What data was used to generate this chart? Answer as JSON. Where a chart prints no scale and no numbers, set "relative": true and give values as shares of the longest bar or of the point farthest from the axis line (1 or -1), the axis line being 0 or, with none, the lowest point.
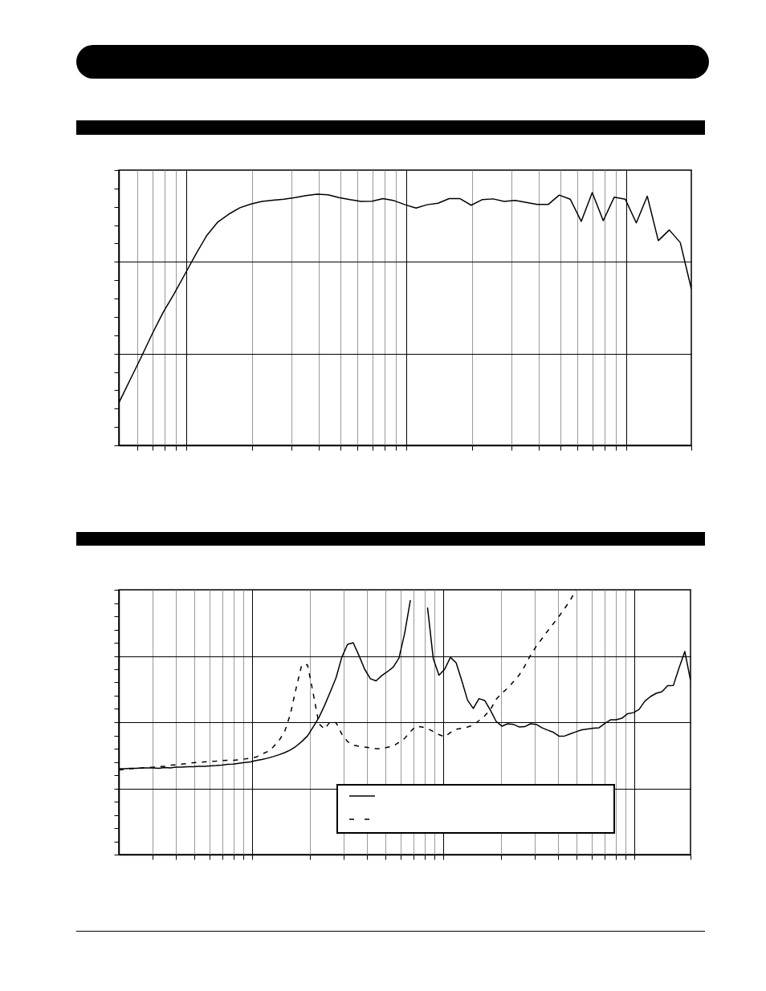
{
  "chart_data": [
    {
      "type": "line",
      "relative": true,
      "grid": true,
      "categories": [
        null,
        null,
        null,
        null,
        null,
        null,
        null,
        null,
        null,
        null,
        null,
        null,
        null,
        null,
        null,
        null,
        null,
        null,
        null,
        null,
        null,
        null,
        null,
        null,
        null,
        null,
        null,
        null,
        null,
        null,
        null,
        null,
        null,
        null,
        null,
        null,
        null,
        null,
        null,
        null,
        null,
        null,
        null,
        null,
        null,
        null,
        null,
        null,
        null,
        null,
        null,
        null,
        null
      ],
      "series": [
        {
          "color": "#000000",
          "line_style": "solid",
          "values": [
            0.168,
            0.257,
            0.346,
            0.438,
            0.524,
            0.598,
            0.677,
            0.757,
            0.831,
            0.884,
            0.915,
            0.94,
            0.955,
            0.965,
            0.97,
            0.974,
            0.98,
            0.988,
            0.994,
            0.991,
            0.98,
            0.972,
            0.965,
            0.966,
            0.976,
            0.968,
            0.952,
            0.939,
            0.952,
            0.958,
            0.976,
            0.976,
            0.95,
            0.972,
            0.975,
            0.965,
            0.969,
            0.961,
            0.953,
            0.953,
            0.99,
            0.974,
            0.886,
            1,
            0.889,
            0.982,
            0.974,
            0.88,
            0.986,
            0.81,
            0.852,
            0.802,
            0.619
          ]
        }
      ]
    },
    {
      "type": "line",
      "relative": true,
      "grid": true,
      "categories": [
        null,
        null,
        null,
        null,
        null,
        null,
        null,
        null,
        null,
        null,
        null,
        null,
        null,
        null,
        null,
        null,
        null,
        null,
        null,
        null,
        null,
        null,
        null,
        null,
        null,
        null,
        null,
        null,
        null,
        null,
        null,
        null,
        null,
        null,
        null,
        null,
        null,
        null,
        null,
        null,
        null,
        null,
        null,
        null,
        null,
        null,
        null,
        null,
        null,
        null,
        null,
        null,
        null,
        null,
        null,
        null,
        null,
        null,
        null,
        null,
        null,
        null,
        null,
        null,
        null,
        null,
        null,
        null,
        null,
        null,
        null,
        null,
        null,
        null,
        null,
        null,
        null,
        null,
        null,
        null,
        null,
        null,
        null,
        null,
        null,
        null,
        null,
        null,
        null,
        null,
        null,
        null,
        null,
        null,
        null,
        null,
        null,
        null,
        null,
        null,
        null
      ],
      "series": [
        {
          "color": "#000000",
          "line_style": "solid",
          "values": [
            0.324,
            0.324,
            0.326,
            0.326,
            0.327,
            0.327,
            0.327,
            0.326,
            0.329,
            0.327,
            0.33,
            0.33,
            0.332,
            0.332,
            0.333,
            0.333,
            0.335,
            0.336,
            0.338,
            0.341,
            0.342,
            0.345,
            0.348,
            0.35,
            0.355,
            0.359,
            0.364,
            0.37,
            0.377,
            0.385,
            0.395,
            0.409,
            0.427,
            0.448,
            0.482,
            0.518,
            0.564,
            0.615,
            0.668,
            0.745,
            0.794,
            0.8,
            0.752,
            0.7,
            0.664,
            0.656,
            0.676,
            0.691,
            0.708,
            0.742,
            0.836,
            0.961,
            null,
            null,
            0.933,
            0.74,
            0.677,
            0.7,
            0.745,
            0.724,
            0.656,
            0.583,
            0.552,
            0.589,
            0.582,
            0.545,
            0.503,
            0.485,
            0.494,
            0.492,
            0.482,
            0.483,
            0.494,
            0.492,
            0.479,
            0.47,
            0.462,
            0.447,
            0.448,
            0.456,
            0.464,
            0.471,
            0.474,
            0.477,
            0.479,
            0.495,
            0.509,
            0.509,
            0.515,
            0.532,
            0.536,
            0.548,
            0.579,
            0.597,
            0.609,
            0.615,
            0.638,
            0.639,
            0.705,
            0.767,
            0.658
          ]
        },
        {
          "color": "#000000",
          "line_style": "dashed",
          "values": [
            0.32,
            0.321,
            0.324,
            0.326,
            0.327,
            0.329,
            0.33,
            0.332,
            0.333,
            0.338,
            0.339,
            0.342,
            0.344,
            0.347,
            0.348,
            0.35,
            0.352,
            0.353,
            0.355,
            0.356,
            0.356,
            0.358,
            0.361,
            0.364,
            0.368,
            0.379,
            0.389,
            0.406,
            0.43,
            0.464,
            0.53,
            0.627,
            0.717,
            0.717,
            0.609,
            0.494,
            0.474,
            0.503,
            0.498,
            0.455,
            0.427,
            0.414,
            0.409,
            0.406,
            0.403,
            0.4,
            0.4,
            0.405,
            0.41,
            0.424,
            0.439,
            0.464,
            0.485,
            0.482,
            0.476,
            0.465,
            0.453,
            0.445,
            0.461,
            0.473,
            0.477,
            0.482,
            0.489,
            0.506,
            0.524,
            0.548,
            0.586,
            0.61,
            0.628,
            0.652,
            0.677,
            0.712,
            0.752,
            0.786,
            0.815,
            0.844,
            0.872,
            0.9,
            0.93,
            0.962,
            1,
            null,
            null,
            null,
            null,
            null,
            null,
            null,
            null,
            null,
            null,
            null,
            null,
            null,
            null,
            null,
            null,
            null,
            null,
            null,
            null
          ]
        }
      ]
    }
  ]
}
